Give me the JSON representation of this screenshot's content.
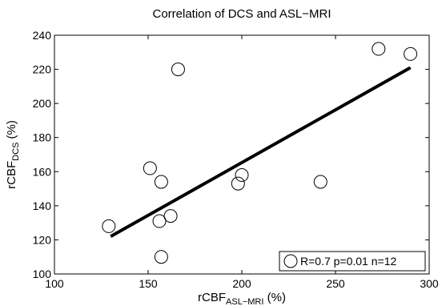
{
  "chart_data": {
    "type": "scatter",
    "title": "Correlation of DCS and ASL−MRI",
    "xlabel": {
      "base": "rCBF",
      "sub": "ASL−MRI",
      "suffix": " (%)"
    },
    "ylabel": {
      "base": "rCBF",
      "sub": "DCS",
      "suffix": " (%)"
    },
    "xlim": [
      100,
      300
    ],
    "ylim": [
      100,
      240
    ],
    "xticks": [
      100,
      150,
      200,
      250,
      300
    ],
    "yticks": [
      100,
      120,
      140,
      160,
      180,
      200,
      220,
      240
    ],
    "grid": false,
    "legend_position": "bottom-right",
    "series": [
      {
        "name": "R=0.7 p=0.01 n=12",
        "marker": "open-circle",
        "x": [
          129,
          151,
          156,
          157,
          157,
          162,
          166,
          198,
          200,
          242,
          273,
          290
        ],
        "y": [
          128,
          162,
          131,
          110,
          154,
          134,
          220,
          153,
          158,
          154,
          232,
          229
        ]
      }
    ],
    "fit_line": {
      "x": [
        130,
        290
      ],
      "y": [
        122,
        221
      ]
    }
  }
}
